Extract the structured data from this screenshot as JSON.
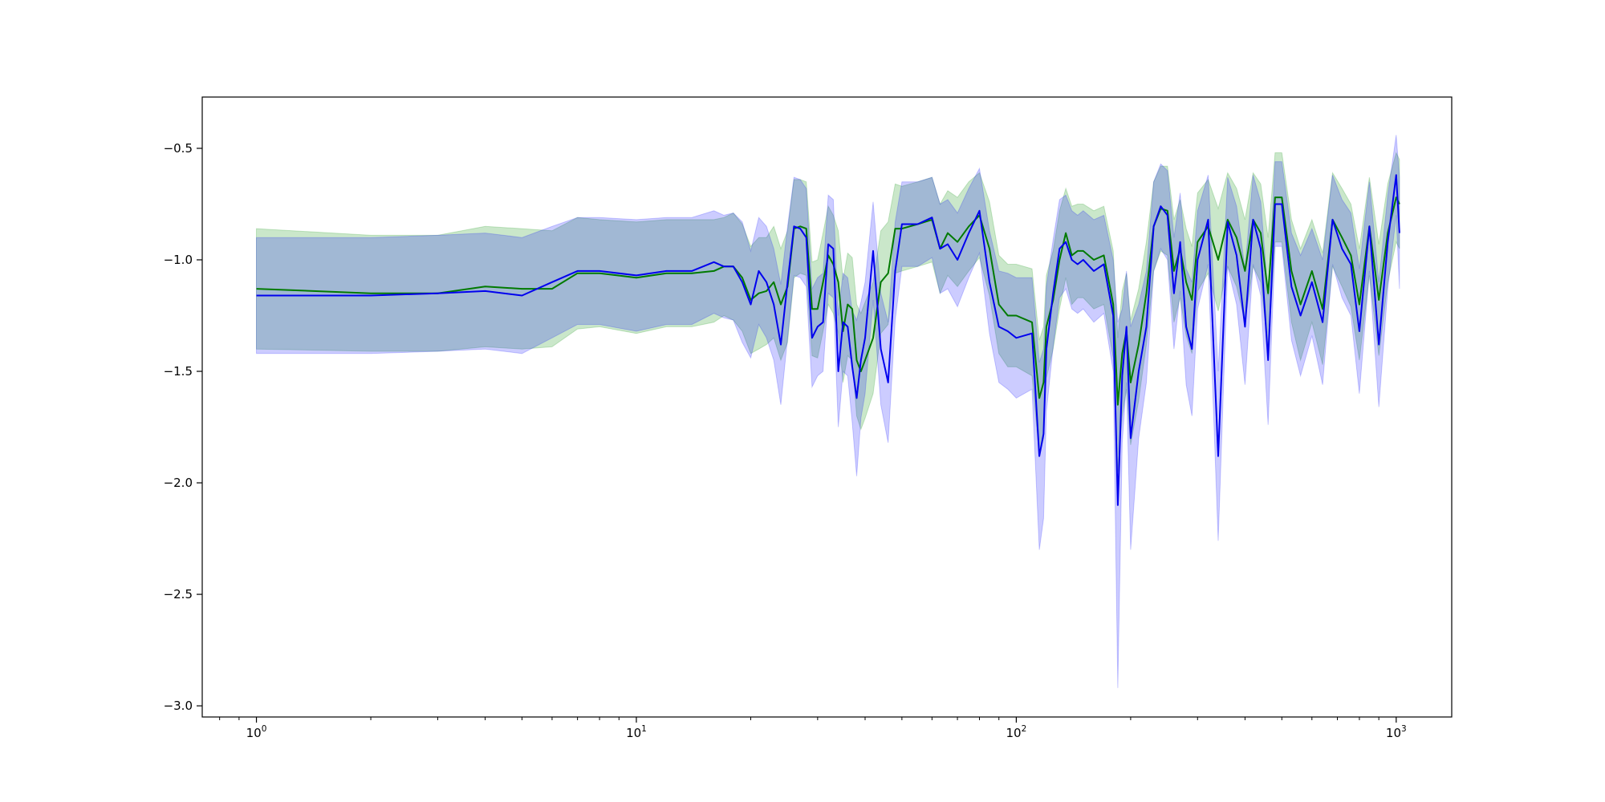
{
  "chart_data": {
    "type": "line",
    "title": "",
    "xlabel": "",
    "ylabel": "",
    "xscale": "log",
    "xlim": [
      0.72,
      1400
    ],
    "ylim": [
      -3.05,
      -0.27
    ],
    "grid": false,
    "legend": "none",
    "x_ticks": [
      {
        "value": 1,
        "base": "10",
        "exp": "0"
      },
      {
        "value": 10,
        "base": "10",
        "exp": "1"
      },
      {
        "value": 100,
        "base": "10",
        "exp": "2"
      },
      {
        "value": 1000,
        "base": "10",
        "exp": "3"
      }
    ],
    "y_ticks": [
      {
        "value": -0.5,
        "label": "−0.5"
      },
      {
        "value": -1.0,
        "label": "−1.0"
      },
      {
        "value": -1.5,
        "label": "−1.5"
      },
      {
        "value": -2.0,
        "label": "−2.0"
      },
      {
        "value": -2.5,
        "label": "−2.5"
      },
      {
        "value": -3.0,
        "label": "−3.0"
      }
    ],
    "series": [
      {
        "color": "#007a00",
        "band_color": "#2ca02c",
        "band_opacity": 0.25,
        "x": [
          1,
          2,
          3,
          4,
          5,
          6,
          7,
          8,
          10,
          12,
          14,
          16,
          17,
          18,
          19,
          20,
          21,
          22,
          23,
          24,
          25,
          26,
          27,
          28,
          29,
          30,
          31,
          32,
          33,
          34,
          35,
          36,
          37,
          38,
          39,
          40,
          42,
          44,
          46,
          48,
          50,
          55,
          60,
          63,
          66,
          70,
          75,
          80,
          85,
          90,
          95,
          100,
          110,
          115,
          118,
          120,
          125,
          130,
          135,
          140,
          145,
          150,
          160,
          170,
          180,
          185,
          190,
          195,
          200,
          210,
          220,
          230,
          240,
          250,
          260,
          270,
          280,
          290,
          300,
          320,
          340,
          360,
          380,
          400,
          420,
          440,
          460,
          480,
          500,
          530,
          560,
          600,
          640,
          680,
          720,
          760,
          800,
          850,
          900,
          950,
          1000,
          1020
        ],
        "y": [
          -1.13,
          -1.15,
          -1.15,
          -1.12,
          -1.13,
          -1.13,
          -1.06,
          -1.06,
          -1.08,
          -1.06,
          -1.06,
          -1.05,
          -1.03,
          -1.03,
          -1.08,
          -1.18,
          -1.15,
          -1.14,
          -1.1,
          -1.2,
          -1.12,
          -0.86,
          -0.85,
          -0.86,
          -1.22,
          -1.22,
          -1.1,
          -0.98,
          -1.02,
          -1.1,
          -1.32,
          -1.2,
          -1.22,
          -1.45,
          -1.5,
          -1.45,
          -1.35,
          -1.1,
          -1.06,
          -0.86,
          -0.86,
          -0.84,
          -0.82,
          -0.95,
          -0.88,
          -0.92,
          -0.85,
          -0.8,
          -0.95,
          -1.2,
          -1.25,
          -1.25,
          -1.28,
          -1.62,
          -1.55,
          -1.3,
          -1.18,
          -1.0,
          -0.88,
          -0.98,
          -0.96,
          -0.96,
          -1.0,
          -0.98,
          -1.2,
          -1.65,
          -1.42,
          -1.32,
          -1.55,
          -1.38,
          -1.15,
          -0.85,
          -0.77,
          -0.78,
          -1.05,
          -0.95,
          -1.1,
          -1.18,
          -0.92,
          -0.85,
          -1.0,
          -0.82,
          -0.9,
          -1.05,
          -0.82,
          -0.88,
          -1.15,
          -0.72,
          -0.72,
          -1.05,
          -1.2,
          -1.05,
          -1.22,
          -0.82,
          -0.9,
          -0.98,
          -1.2,
          -0.85,
          -1.18,
          -0.88,
          -0.72,
          -0.75
        ],
        "lower": [
          -1.4,
          -1.41,
          -1.41,
          -1.39,
          -1.4,
          -1.39,
          -1.31,
          -1.3,
          -1.33,
          -1.3,
          -1.3,
          -1.28,
          -1.25,
          -1.27,
          -1.32,
          -1.42,
          -1.4,
          -1.38,
          -1.35,
          -1.45,
          -1.37,
          -1.08,
          -1.06,
          -1.07,
          -1.43,
          -1.44,
          -1.32,
          -1.2,
          -1.24,
          -1.33,
          -1.55,
          -1.43,
          -1.45,
          -1.7,
          -1.76,
          -1.71,
          -1.6,
          -1.33,
          -1.29,
          -1.06,
          -1.05,
          -1.03,
          -1.01,
          -1.15,
          -1.07,
          -1.12,
          -1.05,
          -0.99,
          -1.16,
          -1.42,
          -1.48,
          -1.48,
          -1.52,
          -1.88,
          -1.8,
          -1.53,
          -1.4,
          -1.22,
          -1.08,
          -1.2,
          -1.17,
          -1.17,
          -1.22,
          -1.2,
          -1.44,
          -1.95,
          -1.7,
          -1.58,
          -1.83,
          -1.63,
          -1.38,
          -1.05,
          -0.96,
          -0.98,
          -1.28,
          -1.17,
          -1.34,
          -1.42,
          -1.14,
          -1.06,
          -1.23,
          -1.03,
          -1.12,
          -1.28,
          -1.03,
          -1.1,
          -1.4,
          -0.92,
          -0.92,
          -1.28,
          -1.45,
          -1.28,
          -1.47,
          -1.03,
          -1.12,
          -1.21,
          -1.45,
          -1.07,
          -1.43,
          -1.1,
          -0.92,
          -0.95
        ],
        "upper": [
          -0.86,
          -0.89,
          -0.89,
          -0.85,
          -0.86,
          -0.87,
          -0.81,
          -0.82,
          -0.83,
          -0.82,
          -0.82,
          -0.82,
          -0.81,
          -0.79,
          -0.84,
          -0.94,
          -0.9,
          -0.9,
          -0.85,
          -0.95,
          -0.87,
          -0.64,
          -0.64,
          -0.65,
          -1.01,
          -1.0,
          -0.88,
          -0.76,
          -0.8,
          -0.87,
          -1.09,
          -0.97,
          -0.99,
          -1.2,
          -1.24,
          -1.19,
          -1.1,
          -0.87,
          -0.83,
          -0.66,
          -0.67,
          -0.65,
          -0.63,
          -0.75,
          -0.69,
          -0.72,
          -0.65,
          -0.61,
          -0.74,
          -0.98,
          -1.02,
          -1.02,
          -1.04,
          -1.36,
          -1.3,
          -1.07,
          -0.96,
          -0.78,
          -0.68,
          -0.76,
          -0.75,
          -0.75,
          -0.78,
          -0.76,
          -0.96,
          -1.35,
          -1.14,
          -1.06,
          -1.27,
          -1.13,
          -0.92,
          -0.65,
          -0.58,
          -0.58,
          -0.82,
          -0.73,
          -0.86,
          -0.94,
          -0.7,
          -0.64,
          -0.77,
          -0.61,
          -0.68,
          -0.82,
          -0.61,
          -0.66,
          -0.9,
          -0.52,
          -0.52,
          -0.82,
          -0.95,
          -0.82,
          -0.97,
          -0.61,
          -0.68,
          -0.75,
          -0.95,
          -0.63,
          -0.93,
          -0.66,
          -0.52,
          -0.55
        ]
      },
      {
        "color": "#0000ee",
        "band_color": "#0000ff",
        "band_opacity": 0.2,
        "x": [
          1,
          2,
          3,
          4,
          5,
          6,
          7,
          8,
          10,
          12,
          14,
          16,
          17,
          18,
          19,
          20,
          21,
          22,
          23,
          24,
          25,
          26,
          27,
          28,
          29,
          30,
          31,
          32,
          33,
          34,
          35,
          36,
          37,
          38,
          39,
          40,
          42,
          44,
          46,
          48,
          50,
          55,
          60,
          63,
          66,
          70,
          75,
          80,
          85,
          90,
          95,
          100,
          110,
          115,
          118,
          120,
          125,
          130,
          135,
          140,
          145,
          150,
          160,
          170,
          180,
          185,
          190,
          195,
          200,
          210,
          220,
          230,
          240,
          250,
          260,
          270,
          280,
          290,
          300,
          320,
          340,
          360,
          380,
          400,
          420,
          440,
          460,
          480,
          500,
          530,
          560,
          600,
          640,
          680,
          720,
          760,
          800,
          850,
          900,
          950,
          1000,
          1020
        ],
        "y": [
          -1.16,
          -1.16,
          -1.15,
          -1.14,
          -1.16,
          -1.1,
          -1.05,
          -1.05,
          -1.07,
          -1.05,
          -1.05,
          -1.01,
          -1.03,
          -1.03,
          -1.1,
          -1.2,
          -1.05,
          -1.1,
          -1.2,
          -1.38,
          -1.1,
          -0.85,
          -0.86,
          -0.9,
          -1.35,
          -1.3,
          -1.28,
          -0.93,
          -0.95,
          -1.5,
          -1.28,
          -1.3,
          -1.48,
          -1.62,
          -1.45,
          -1.35,
          -0.96,
          -1.4,
          -1.55,
          -1.05,
          -0.84,
          -0.84,
          -0.81,
          -0.95,
          -0.93,
          -1.0,
          -0.88,
          -0.78,
          -1.1,
          -1.3,
          -1.32,
          -1.35,
          -1.33,
          -1.88,
          -1.78,
          -1.4,
          -1.15,
          -0.95,
          -0.92,
          -1.0,
          -1.02,
          -1.0,
          -1.05,
          -1.02,
          -1.25,
          -2.1,
          -1.52,
          -1.3,
          -1.8,
          -1.5,
          -1.3,
          -0.85,
          -0.76,
          -0.8,
          -1.15,
          -0.92,
          -1.3,
          -1.4,
          -1.0,
          -0.82,
          -1.88,
          -0.83,
          -0.98,
          -1.3,
          -0.82,
          -0.95,
          -1.45,
          -0.75,
          -0.75,
          -1.12,
          -1.25,
          -1.1,
          -1.28,
          -0.82,
          -0.95,
          -1.02,
          -1.32,
          -0.85,
          -1.38,
          -0.92,
          -0.62,
          -0.88
        ],
        "lower": [
          -1.42,
          -1.42,
          -1.41,
          -1.4,
          -1.42,
          -1.35,
          -1.29,
          -1.29,
          -1.32,
          -1.29,
          -1.29,
          -1.24,
          -1.26,
          -1.27,
          -1.37,
          -1.44,
          -1.29,
          -1.35,
          -1.45,
          -1.65,
          -1.35,
          -1.07,
          -1.08,
          -1.12,
          -1.57,
          -1.52,
          -1.5,
          -1.15,
          -1.17,
          -1.75,
          -1.5,
          -1.52,
          -1.73,
          -1.97,
          -1.71,
          -1.6,
          -1.18,
          -1.65,
          -1.82,
          -1.27,
          -1.03,
          -1.03,
          -0.99,
          -1.15,
          -1.13,
          -1.21,
          -1.08,
          -0.97,
          -1.33,
          -1.55,
          -1.58,
          -1.62,
          -1.58,
          -2.3,
          -2.16,
          -1.68,
          -1.39,
          -1.17,
          -1.13,
          -1.22,
          -1.24,
          -1.22,
          -1.28,
          -1.24,
          -1.5,
          -2.92,
          -1.82,
          -1.55,
          -2.3,
          -1.8,
          -1.55,
          -1.05,
          -0.95,
          -1.0,
          -1.4,
          -1.14,
          -1.56,
          -1.7,
          -1.22,
          -1.02,
          -2.26,
          -1.03,
          -1.2,
          -1.56,
          -1.02,
          -1.16,
          -1.74,
          -0.94,
          -0.94,
          -1.36,
          -1.52,
          -1.34,
          -1.56,
          -1.02,
          -1.17,
          -1.25,
          -1.6,
          -1.05,
          -1.66,
          -1.13,
          -0.8,
          -1.13
        ],
        "upper": [
          -0.9,
          -0.9,
          -0.89,
          -0.88,
          -0.9,
          -0.85,
          -0.81,
          -0.81,
          -0.82,
          -0.81,
          -0.81,
          -0.78,
          -0.8,
          -0.79,
          -0.83,
          -0.96,
          -0.81,
          -0.85,
          -0.95,
          -1.11,
          -0.85,
          -0.63,
          -0.64,
          -0.68,
          -1.13,
          -1.08,
          -1.06,
          -0.71,
          -0.73,
          -1.25,
          -1.06,
          -1.08,
          -1.23,
          -1.27,
          -1.19,
          -1.1,
          -0.74,
          -1.15,
          -1.28,
          -0.83,
          -0.65,
          -0.65,
          -0.63,
          -0.75,
          -0.73,
          -0.79,
          -0.68,
          -0.59,
          -0.87,
          -1.05,
          -1.06,
          -1.08,
          -1.08,
          -1.46,
          -1.4,
          -1.12,
          -0.91,
          -0.73,
          -0.71,
          -0.78,
          -0.8,
          -0.78,
          -0.82,
          -0.8,
          -1.0,
          -1.28,
          -1.22,
          -1.05,
          -1.3,
          -1.2,
          -1.05,
          -0.65,
          -0.57,
          -0.6,
          -0.9,
          -0.7,
          -1.04,
          -1.1,
          -0.78,
          -0.62,
          -1.5,
          -0.63,
          -0.76,
          -1.04,
          -0.62,
          -0.74,
          -1.16,
          -0.56,
          -0.56,
          -0.88,
          -0.98,
          -0.86,
          -1.0,
          -0.62,
          -0.73,
          -0.79,
          -1.04,
          -0.65,
          -1.1,
          -0.71,
          -0.44,
          -0.63
        ]
      }
    ]
  }
}
